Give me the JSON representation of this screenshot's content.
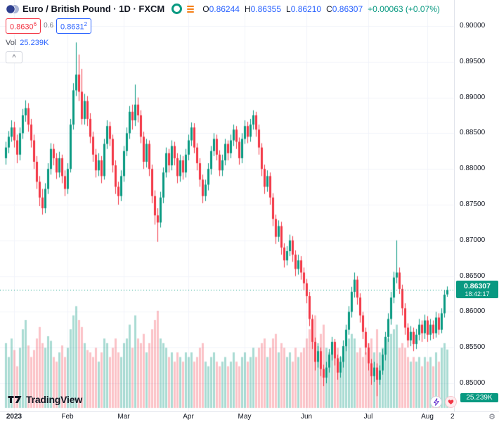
{
  "header": {
    "symbol_title": "Euro / British Pound · 1D · FXCM",
    "ohlc": {
      "o_label": "O",
      "o": "0.86244",
      "h_label": "H",
      "h": "0.86355",
      "l_label": "L",
      "l": "0.86210",
      "c_label": "C",
      "c": "0.86307",
      "change": "+0.00063 (+0.07%)"
    },
    "bid": {
      "main": "0.8630",
      "sup": "6"
    },
    "spread": "0.6",
    "ask": {
      "main": "0.8631",
      "sup": "2"
    },
    "vol_label": "Vol",
    "vol_value": "25.239K"
  },
  "icons": {
    "chevron_up": "^",
    "gear": "⚙"
  },
  "colors": {
    "up": "#089981",
    "down": "#f23645",
    "vol_up": "rgba(8,153,129,0.35)",
    "vol_down": "rgba(242,54,69,0.30)",
    "grid": "#f0f3fa",
    "accent_blue": "#2962ff",
    "text": "#131722",
    "muted": "#787b86",
    "axis_border": "#e0e3eb",
    "badge_green": "#089981"
  },
  "price_axis": {
    "labels": [
      {
        "text": "0.90000",
        "price": 0.9
      },
      {
        "text": "0.89500",
        "price": 0.895
      },
      {
        "text": "0.89000",
        "price": 0.89
      },
      {
        "text": "0.88500",
        "price": 0.885
      },
      {
        "text": "0.88000",
        "price": 0.88
      },
      {
        "text": "0.87500",
        "price": 0.875
      },
      {
        "text": "0.87000",
        "price": 0.87
      },
      {
        "text": "0.86500",
        "price": 0.865
      },
      {
        "text": "0.86000",
        "price": 0.86
      },
      {
        "text": "0.85500",
        "price": 0.855
      },
      {
        "text": "0.85000",
        "price": 0.85
      }
    ],
    "last": {
      "text": "0.86307",
      "countdown": "18:42:17",
      "price": 0.86307
    },
    "volume_badge": "25.239K"
  },
  "time_axis": {
    "labels": [
      {
        "text": "2023",
        "index": 3,
        "year": true
      },
      {
        "text": "Feb",
        "index": 22
      },
      {
        "text": "Mar",
        "index": 42
      },
      {
        "text": "Apr",
        "index": 65
      },
      {
        "text": "May",
        "index": 85
      },
      {
        "text": "Jun",
        "index": 107
      },
      {
        "text": "Jul",
        "index": 129
      },
      {
        "text": "Aug",
        "index": 150
      }
    ],
    "partial_label": "2"
  },
  "footer": {
    "logo_text": "TradingView"
  },
  "chart_data": {
    "type": "candlestick",
    "title": "Euro / British Pound",
    "exchange": "FXCM",
    "interval": "1D",
    "ylim": [
      0.84606,
      0.90364
    ],
    "last_price": 0.86307,
    "volume_axis_max": 45,
    "scale": {
      "price_at_top": 0.90364,
      "price_at_bottom": 0.84606,
      "first_bar_x": 8,
      "bar_step": 4
    },
    "candles": [
      [
        0.8815,
        0.8838,
        0.8806,
        0.883
      ],
      [
        0.883,
        0.8853,
        0.8822,
        0.8845
      ],
      [
        0.8845,
        0.8868,
        0.8838,
        0.8858
      ],
      [
        0.8858,
        0.8866,
        0.883,
        0.884
      ],
      [
        0.884,
        0.8848,
        0.8808,
        0.882
      ],
      [
        0.882,
        0.8858,
        0.8812,
        0.885
      ],
      [
        0.885,
        0.8884,
        0.8842,
        0.8875
      ],
      [
        0.8875,
        0.8896,
        0.8866,
        0.8885
      ],
      [
        0.8885,
        0.8892,
        0.8852,
        0.8862
      ],
      [
        0.8862,
        0.887,
        0.883,
        0.884
      ],
      [
        0.884,
        0.8848,
        0.88,
        0.881
      ],
      [
        0.881,
        0.8818,
        0.8772,
        0.8782
      ],
      [
        0.8782,
        0.879,
        0.8748,
        0.876
      ],
      [
        0.876,
        0.8772,
        0.8736,
        0.8745
      ],
      [
        0.8745,
        0.878,
        0.8738,
        0.8772
      ],
      [
        0.8772,
        0.8808,
        0.8765,
        0.88
      ],
      [
        0.88,
        0.8836,
        0.8792,
        0.8828
      ],
      [
        0.8828,
        0.8835,
        0.8805,
        0.8815
      ],
      [
        0.8815,
        0.8822,
        0.8786,
        0.8795
      ],
      [
        0.8795,
        0.8824,
        0.8788,
        0.8815
      ],
      [
        0.8815,
        0.882,
        0.878,
        0.879
      ],
      [
        0.879,
        0.8798,
        0.8762,
        0.8772
      ],
      [
        0.8772,
        0.8808,
        0.8765,
        0.88
      ],
      [
        0.88,
        0.887,
        0.8795,
        0.8862
      ],
      [
        0.8862,
        0.892,
        0.8855,
        0.891
      ],
      [
        0.891,
        0.8977,
        0.8902,
        0.8932
      ],
      [
        0.8932,
        0.896,
        0.8895,
        0.8908
      ],
      [
        0.8908,
        0.894,
        0.8862,
        0.887
      ],
      [
        0.887,
        0.8905,
        0.8862,
        0.8895
      ],
      [
        0.8895,
        0.8902,
        0.886,
        0.887
      ],
      [
        0.887,
        0.8878,
        0.8836,
        0.8845
      ],
      [
        0.8845,
        0.8852,
        0.881,
        0.882
      ],
      [
        0.882,
        0.8828,
        0.8788,
        0.8798
      ],
      [
        0.8798,
        0.8822,
        0.879,
        0.8812
      ],
      [
        0.8812,
        0.8818,
        0.878,
        0.879
      ],
      [
        0.879,
        0.8842,
        0.8785,
        0.8835
      ],
      [
        0.8835,
        0.8868,
        0.8828,
        0.886
      ],
      [
        0.886,
        0.8866,
        0.8832,
        0.8842
      ],
      [
        0.8842,
        0.8848,
        0.8795,
        0.8805
      ],
      [
        0.8805,
        0.8812,
        0.8765,
        0.8775
      ],
      [
        0.8775,
        0.8782,
        0.875,
        0.8762
      ],
      [
        0.8762,
        0.8798,
        0.8755,
        0.879
      ],
      [
        0.879,
        0.8832,
        0.8782,
        0.8825
      ],
      [
        0.8825,
        0.8858,
        0.8818,
        0.885
      ],
      [
        0.885,
        0.8888,
        0.8842,
        0.888
      ],
      [
        0.888,
        0.889,
        0.8855,
        0.8868
      ],
      [
        0.8868,
        0.8918,
        0.886,
        0.889
      ],
      [
        0.889,
        0.89,
        0.8865,
        0.8875
      ],
      [
        0.8875,
        0.8882,
        0.8836,
        0.8845
      ],
      [
        0.8845,
        0.8852,
        0.88,
        0.881
      ],
      [
        0.881,
        0.8842,
        0.8802,
        0.8835
      ],
      [
        0.8835,
        0.884,
        0.879,
        0.88
      ],
      [
        0.88,
        0.8806,
        0.8752,
        0.8762
      ],
      [
        0.8762,
        0.877,
        0.8722,
        0.8735
      ],
      [
        0.8735,
        0.8745,
        0.8698,
        0.8725
      ],
      [
        0.8725,
        0.8768,
        0.8718,
        0.876
      ],
      [
        0.876,
        0.8802,
        0.8752,
        0.8795
      ],
      [
        0.8795,
        0.883,
        0.8788,
        0.8822
      ],
      [
        0.8822,
        0.8828,
        0.8795,
        0.8805
      ],
      [
        0.8805,
        0.884,
        0.8798,
        0.8832
      ],
      [
        0.8832,
        0.8838,
        0.8805,
        0.8815
      ],
      [
        0.8815,
        0.8822,
        0.878,
        0.879
      ],
      [
        0.879,
        0.882,
        0.8782,
        0.8812
      ],
      [
        0.8812,
        0.8818,
        0.8785,
        0.8795
      ],
      [
        0.8795,
        0.8828,
        0.8788,
        0.882
      ],
      [
        0.882,
        0.8848,
        0.8812,
        0.884
      ],
      [
        0.884,
        0.8865,
        0.8832,
        0.8858
      ],
      [
        0.8858,
        0.8864,
        0.8822,
        0.883
      ],
      [
        0.883,
        0.8836,
        0.8798,
        0.8808
      ],
      [
        0.8808,
        0.8815,
        0.8775,
        0.8785
      ],
      [
        0.8785,
        0.8792,
        0.8752,
        0.8762
      ],
      [
        0.8762,
        0.8785,
        0.8755,
        0.8778
      ],
      [
        0.8778,
        0.8808,
        0.877,
        0.88
      ],
      [
        0.88,
        0.8832,
        0.8792,
        0.8825
      ],
      [
        0.8825,
        0.885,
        0.8818,
        0.8842
      ],
      [
        0.8842,
        0.8848,
        0.8812,
        0.882
      ],
      [
        0.882,
        0.8826,
        0.879,
        0.8798
      ],
      [
        0.8798,
        0.882,
        0.879,
        0.8812
      ],
      [
        0.8812,
        0.8842,
        0.8805,
        0.8835
      ],
      [
        0.8835,
        0.884,
        0.8812,
        0.8822
      ],
      [
        0.8822,
        0.8848,
        0.8815,
        0.884
      ],
      [
        0.884,
        0.8862,
        0.8832,
        0.8855
      ],
      [
        0.8855,
        0.886,
        0.8828,
        0.8838
      ],
      [
        0.8838,
        0.8844,
        0.8806,
        0.8815
      ],
      [
        0.8815,
        0.885,
        0.8808,
        0.8842
      ],
      [
        0.8842,
        0.8868,
        0.8835,
        0.886
      ],
      [
        0.886,
        0.8866,
        0.8836,
        0.8845
      ],
      [
        0.8845,
        0.887,
        0.8838,
        0.8862
      ],
      [
        0.8862,
        0.8882,
        0.8855,
        0.8875
      ],
      [
        0.8875,
        0.888,
        0.8845,
        0.8855
      ],
      [
        0.8855,
        0.8862,
        0.882,
        0.883
      ],
      [
        0.883,
        0.8836,
        0.879,
        0.88
      ],
      [
        0.88,
        0.8806,
        0.8765,
        0.8775
      ],
      [
        0.8775,
        0.8798,
        0.8768,
        0.879
      ],
      [
        0.879,
        0.8795,
        0.875,
        0.876
      ],
      [
        0.876,
        0.8766,
        0.872,
        0.873
      ],
      [
        0.873,
        0.8736,
        0.8695,
        0.8705
      ],
      [
        0.8705,
        0.8728,
        0.8698,
        0.872
      ],
      [
        0.872,
        0.8726,
        0.868,
        0.869
      ],
      [
        0.869,
        0.8696,
        0.8662,
        0.8672
      ],
      [
        0.8672,
        0.8692,
        0.8665,
        0.8685
      ],
      [
        0.8685,
        0.8708,
        0.8678,
        0.87
      ],
      [
        0.87,
        0.8706,
        0.867,
        0.868
      ],
      [
        0.868,
        0.8686,
        0.865,
        0.866
      ],
      [
        0.866,
        0.868,
        0.8652,
        0.8672
      ],
      [
        0.8672,
        0.8678,
        0.8645,
        0.8655
      ],
      [
        0.8655,
        0.8662,
        0.863,
        0.864
      ],
      [
        0.864,
        0.8646,
        0.8612,
        0.8622
      ],
      [
        0.8622,
        0.8628,
        0.858,
        0.859
      ],
      [
        0.859,
        0.8596,
        0.8548,
        0.8558
      ],
      [
        0.8558,
        0.8564,
        0.8518,
        0.853
      ],
      [
        0.853,
        0.8552,
        0.8522,
        0.8545
      ],
      [
        0.8545,
        0.855,
        0.851,
        0.852
      ],
      [
        0.852,
        0.8526,
        0.8496,
        0.8508
      ],
      [
        0.8508,
        0.853,
        0.85,
        0.8522
      ],
      [
        0.8522,
        0.8548,
        0.8515,
        0.854
      ],
      [
        0.854,
        0.8565,
        0.8532,
        0.8558
      ],
      [
        0.8558,
        0.8562,
        0.8525,
        0.8535
      ],
      [
        0.8535,
        0.854,
        0.8505,
        0.8515
      ],
      [
        0.8515,
        0.8538,
        0.8508,
        0.853
      ],
      [
        0.853,
        0.856,
        0.8522,
        0.8552
      ],
      [
        0.8552,
        0.8582,
        0.8545,
        0.8575
      ],
      [
        0.8575,
        0.8608,
        0.8568,
        0.86
      ],
      [
        0.86,
        0.8635,
        0.8592,
        0.8628
      ],
      [
        0.8628,
        0.8655,
        0.862,
        0.8645
      ],
      [
        0.8645,
        0.865,
        0.861,
        0.862
      ],
      [
        0.862,
        0.8626,
        0.8585,
        0.8595
      ],
      [
        0.8595,
        0.86,
        0.8562,
        0.8572
      ],
      [
        0.8572,
        0.8578,
        0.854,
        0.855
      ],
      [
        0.855,
        0.8556,
        0.8518,
        0.8528
      ],
      [
        0.8528,
        0.8534,
        0.8498,
        0.851
      ],
      [
        0.851,
        0.853,
        0.8502,
        0.8522
      ],
      [
        0.8522,
        0.8528,
        0.8482,
        0.8505
      ],
      [
        0.8505,
        0.8525,
        0.8498,
        0.8518
      ],
      [
        0.8518,
        0.8548,
        0.8512,
        0.854
      ],
      [
        0.854,
        0.8572,
        0.8532,
        0.8565
      ],
      [
        0.8565,
        0.8598,
        0.8558,
        0.859
      ],
      [
        0.859,
        0.8628,
        0.8582,
        0.862
      ],
      [
        0.862,
        0.8656,
        0.8612,
        0.8648
      ],
      [
        0.8648,
        0.87,
        0.864,
        0.8655
      ],
      [
        0.8655,
        0.8662,
        0.8625,
        0.8632
      ],
      [
        0.8632,
        0.8638,
        0.8595,
        0.8605
      ],
      [
        0.8605,
        0.8612,
        0.8568,
        0.8578
      ],
      [
        0.8578,
        0.8584,
        0.855,
        0.856
      ],
      [
        0.856,
        0.858,
        0.8552,
        0.8572
      ],
      [
        0.8572,
        0.8578,
        0.8545,
        0.8555
      ],
      [
        0.8555,
        0.8576,
        0.8548,
        0.8568
      ],
      [
        0.8568,
        0.859,
        0.856,
        0.8582
      ],
      [
        0.8582,
        0.8588,
        0.8558,
        0.857
      ],
      [
        0.857,
        0.8596,
        0.8562,
        0.8588
      ],
      [
        0.8588,
        0.8594,
        0.8558,
        0.8568
      ],
      [
        0.8568,
        0.859,
        0.856,
        0.8582
      ],
      [
        0.8582,
        0.8588,
        0.8562,
        0.857
      ],
      [
        0.857,
        0.86,
        0.8564,
        0.8592
      ],
      [
        0.8592,
        0.8598,
        0.8568,
        0.8575
      ],
      [
        0.8575,
        0.8605,
        0.857,
        0.8598
      ],
      [
        0.8598,
        0.863,
        0.8592,
        0.8624
      ],
      [
        0.86244,
        0.86355,
        0.8621,
        0.86307
      ]
    ],
    "volumes": [
      28,
      22,
      30,
      25,
      18,
      26,
      34,
      38,
      27,
      22,
      25,
      30,
      35,
      28,
      26,
      31,
      29,
      22,
      20,
      24,
      27,
      22,
      26,
      34,
      40,
      44,
      38,
      35,
      28,
      25,
      24,
      22,
      26,
      20,
      24,
      30,
      28,
      22,
      26,
      30,
      24,
      22,
      28,
      30,
      36,
      26,
      40,
      30,
      28,
      32,
      24,
      28,
      34,
      38,
      42,
      30,
      28,
      26,
      22,
      24,
      20,
      24,
      22,
      20,
      24,
      22,
      24,
      20,
      22,
      26,
      28,
      20,
      18,
      22,
      24,
      20,
      18,
      20,
      22,
      18,
      20,
      24,
      20,
      18,
      22,
      24,
      20,
      22,
      26,
      22,
      26,
      28,
      30,
      22,
      26,
      30,
      32,
      24,
      28,
      26,
      22,
      24,
      20,
      26,
      22,
      24,
      26,
      30,
      34,
      38,
      40,
      28,
      32,
      36,
      26,
      24,
      28,
      22,
      26,
      22,
      26,
      28,
      30,
      32,
      30,
      24,
      26,
      22,
      24,
      28,
      30,
      24,
      34,
      24,
      26,
      28,
      30,
      32,
      34,
      36,
      26,
      28,
      26,
      22,
      20,
      22,
      20,
      22,
      18,
      22,
      20,
      22,
      18,
      24,
      20,
      26,
      28,
      25.239
    ]
  }
}
